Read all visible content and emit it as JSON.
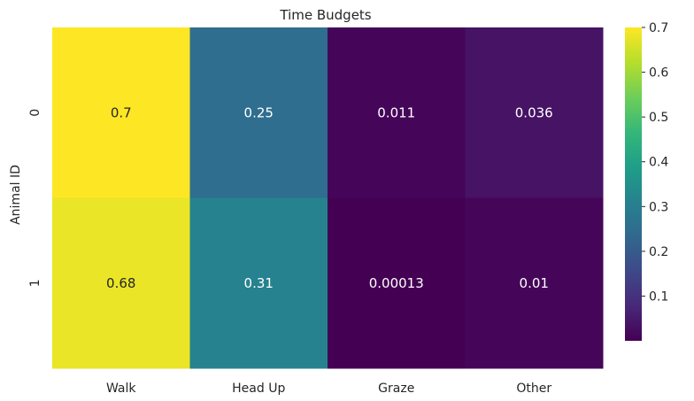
{
  "chart_data": {
    "type": "heatmap",
    "title": "Time Budgets",
    "xlabel": "",
    "ylabel": "Animal ID",
    "x_categories": [
      "Walk",
      "Head Up",
      "Graze",
      "Other"
    ],
    "y_categories": [
      "0",
      "1"
    ],
    "values": [
      [
        0.7,
        0.25,
        0.011,
        0.036
      ],
      [
        0.68,
        0.31,
        0.00013,
        0.01
      ]
    ],
    "value_labels": [
      [
        "0.7",
        "0.25",
        "0.011",
        "0.036"
      ],
      [
        "0.68",
        "0.31",
        "0.00013",
        "0.01"
      ]
    ],
    "colormap": "viridis",
    "vmin": 0.00013,
    "vmax": 0.7,
    "colorbar_ticks": [
      "0.1",
      "0.2",
      "0.3",
      "0.4",
      "0.5",
      "0.6",
      "0.7"
    ],
    "colorbar_tick_values": [
      0.1,
      0.2,
      0.3,
      0.4,
      0.5,
      0.6,
      0.7
    ],
    "grid": false,
    "colors": {
      "viridis_stops": [
        "#440154",
        "#482878",
        "#3e4989",
        "#31688e",
        "#26828e",
        "#1f9e89",
        "#35b779",
        "#6ece58",
        "#b5de2b",
        "#fde725"
      ],
      "text_dark": "#262626",
      "text_light": "#ffffff"
    }
  }
}
